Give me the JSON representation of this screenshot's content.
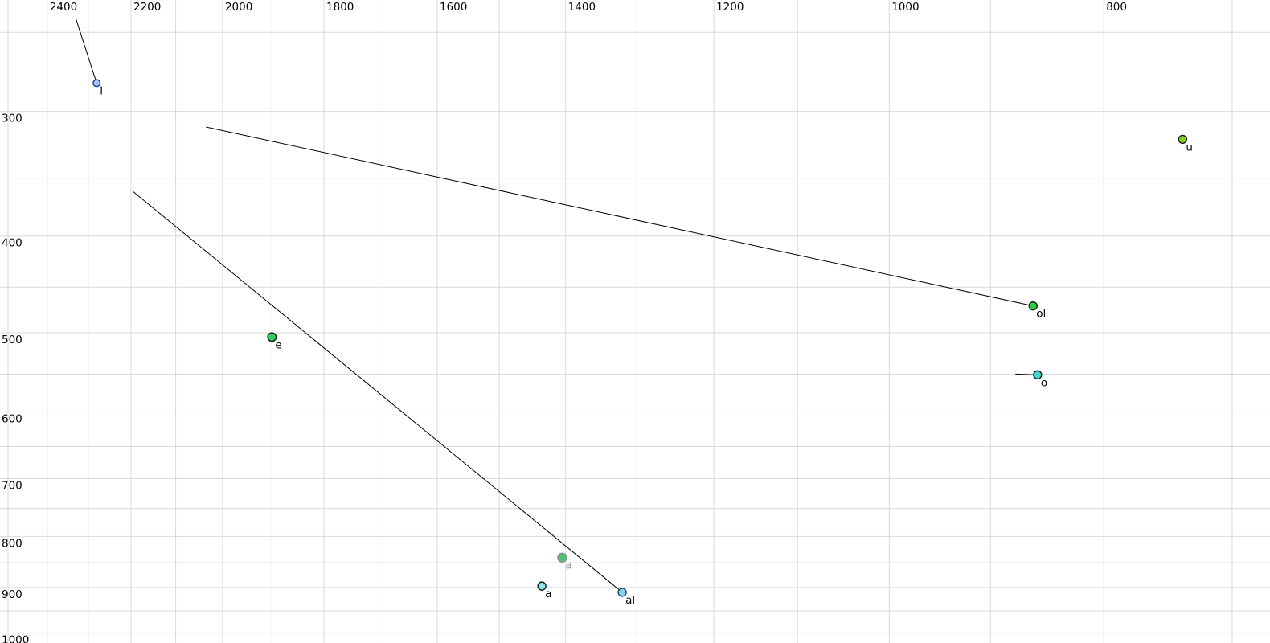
{
  "chart_data": {
    "type": "scatter",
    "title": "",
    "description": "Vowel formant plot: F2 (Hz) on reversed log x-axis along top, F1 (Hz) on log y-axis along left; labelled vowel tokens, some with formant-trajectory tail lines",
    "x_axis": {
      "unit": "Hz",
      "scale": "log",
      "reversed": true,
      "domain": [
        2521,
        673
      ],
      "gridlines": {
        "from": 700,
        "to": 2500,
        "step": 100
      },
      "ticks": [
        2400,
        2200,
        2000,
        1800,
        1600,
        1400,
        1200,
        1000,
        800
      ]
    },
    "y_axis": {
      "unit": "Hz",
      "scale": "log",
      "reversed": false,
      "domain": [
        232,
        1023
      ],
      "gridlines": {
        "from": 250,
        "to": 1000,
        "step": 50
      },
      "ticks": [
        300,
        400,
        500,
        600,
        700,
        800,
        900,
        1000
      ]
    },
    "points": [
      {
        "id": "i",
        "label": "i",
        "f2": 2280,
        "f1": 281,
        "radius": 4.3,
        "fill": "#a5c6f0",
        "stroke": "#1f3d99",
        "label_color": "#000000"
      },
      {
        "id": "u",
        "label": "u",
        "f2": 737,
        "f1": 320,
        "radius": 5.0,
        "fill": "#7fd41c",
        "stroke": "#1a1a1a",
        "label_color": "#000000"
      },
      {
        "id": "ol",
        "label": "ol",
        "f2": 861,
        "f1": 470,
        "radius": 5.0,
        "fill": "#2ecc40",
        "stroke": "#1a1a1a",
        "label_color": "#000000"
      },
      {
        "id": "e",
        "label": "e",
        "f2": 1900,
        "f1": 505,
        "radius": 5.3,
        "fill": "#2ad15c",
        "stroke": "#1a1a1a",
        "label_color": "#000000"
      },
      {
        "id": "o",
        "label": "o",
        "f2": 857,
        "f1": 551,
        "radius": 5.0,
        "fill": "#3ed6cf",
        "stroke": "#1a1a1a",
        "label_color": "#000000"
      },
      {
        "id": "a-mid",
        "label": "a",
        "f2": 1405,
        "f1": 840,
        "radius": 5.5,
        "fill": "#4cc46e",
        "stroke": "#8c8c8c",
        "label_color": "#969696"
      },
      {
        "id": "a-low",
        "label": "a",
        "f2": 1435,
        "f1": 897,
        "radius": 5.0,
        "fill": "#8ce6e6",
        "stroke": "#1a1a1a",
        "label_color": "#000000"
      },
      {
        "id": "al",
        "label": "al",
        "f2": 1320,
        "f1": 910,
        "radius": 5.0,
        "fill": "#8ad4ea",
        "stroke": "#1a4a66",
        "label_color": "#000000"
      }
    ],
    "trajectories": [
      {
        "point": "i",
        "from": {
          "f2": 2330,
          "f1": 242
        }
      },
      {
        "point": "ol",
        "from": {
          "f2": 2035,
          "f1": 311
        }
      },
      {
        "point": "o",
        "from": {
          "f2": 877,
          "f1": 550
        }
      },
      {
        "point": "al",
        "from": {
          "f2": 2195,
          "f1": 361
        }
      }
    ],
    "colors": {
      "background": "#ffffff",
      "gridline": "#d9d9d9",
      "trajectory_line": "#000000",
      "tick_label": "#000000"
    }
  }
}
